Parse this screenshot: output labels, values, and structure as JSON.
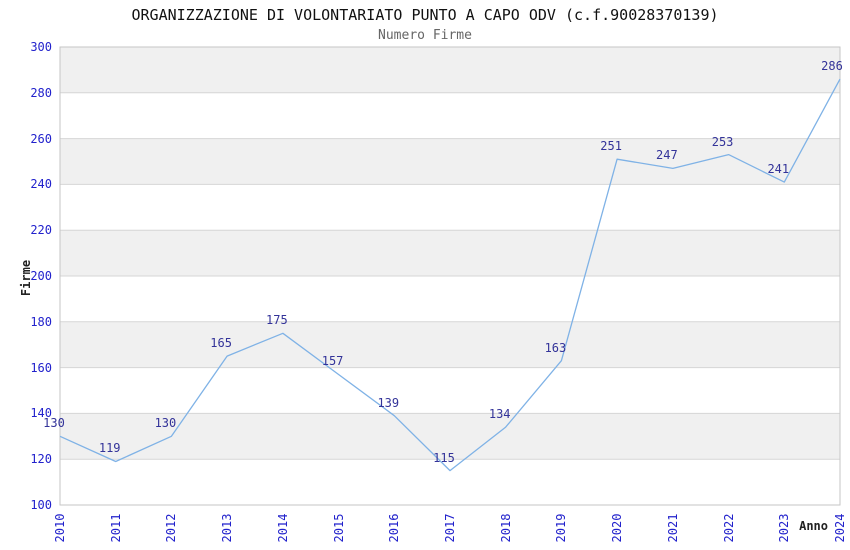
{
  "chart_data": {
    "type": "line",
    "title": "ORGANIZZAZIONE DI VOLONTARIATO PUNTO A CAPO ODV (c.f.90028370139)",
    "subtitle": "Numero Firme",
    "xlabel": "Anno",
    "ylabel": "Firme",
    "categories": [
      "2010",
      "2011",
      "2012",
      "2013",
      "2014",
      "2015",
      "2016",
      "2017",
      "2018",
      "2019",
      "2020",
      "2021",
      "2022",
      "2023",
      "2024"
    ],
    "values": [
      130,
      119,
      130,
      165,
      175,
      157,
      139,
      115,
      134,
      163,
      251,
      247,
      253,
      241,
      286
    ],
    "ylim": [
      100,
      300
    ],
    "ytick_step": 20,
    "yticks": [
      "100",
      "120",
      "140",
      "160",
      "180",
      "200",
      "220",
      "240",
      "260",
      "280",
      "300"
    ],
    "grid": true,
    "legend_position": "none",
    "colors": {
      "line": "#7fb2e6",
      "tick_label": "#2222cc",
      "data_label": "#333399",
      "band": "#f0f0f0",
      "gridline": "#d6d6d6",
      "plot_border": "#c6c6c6",
      "title": "#111111",
      "subtitle": "#666666"
    }
  }
}
